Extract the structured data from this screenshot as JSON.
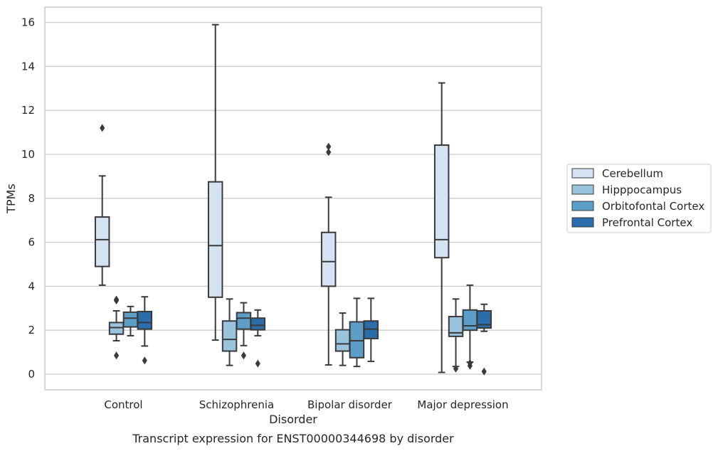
{
  "chart_data": {
    "type": "box",
    "xlabel": "Disorder",
    "ylabel": "TPMs",
    "caption": "Transcript expression for ENST00000344698 by disorder",
    "ylim": [
      -0.7,
      16.7
    ],
    "yticks": [
      0,
      2,
      4,
      6,
      8,
      10,
      12,
      14,
      16
    ],
    "categories": [
      "Control",
      "Schizophrenia",
      "Bipolar disorder",
      "Major depression"
    ],
    "grid": "horizontal",
    "legend_position": "right",
    "series": [
      {
        "name": "Cerebellum",
        "color": "#d4e3f1",
        "boxes": [
          {
            "whisker_low": 4.05,
            "q1": 4.9,
            "median": 6.12,
            "q3": 7.15,
            "whisker_high": 9.02,
            "outliers": [
              11.2
            ]
          },
          {
            "whisker_low": 1.55,
            "q1": 3.5,
            "median": 5.85,
            "q3": 8.75,
            "whisker_high": 15.9,
            "outliers": []
          },
          {
            "whisker_low": 0.42,
            "q1": 4.0,
            "median": 5.12,
            "q3": 6.45,
            "whisker_high": 8.05,
            "outliers": [
              10.1,
              10.35
            ]
          },
          {
            "whisker_low": 0.08,
            "q1": 5.3,
            "median": 6.12,
            "q3": 10.42,
            "whisker_high": 13.25,
            "outliers": []
          }
        ]
      },
      {
        "name": "Hipppocampus",
        "color": "#9ac4de",
        "boxes": [
          {
            "whisker_low": 1.52,
            "q1": 1.82,
            "median": 2.12,
            "q3": 2.35,
            "whisker_high": 2.88,
            "outliers": [
              0.85,
              3.35,
              3.4
            ]
          },
          {
            "whisker_low": 0.4,
            "q1": 1.05,
            "median": 1.58,
            "q3": 2.42,
            "whisker_high": 3.42,
            "outliers": []
          },
          {
            "whisker_low": 0.4,
            "q1": 1.05,
            "median": 1.38,
            "q3": 2.02,
            "whisker_high": 2.78,
            "outliers": []
          },
          {
            "whisker_low": 0.35,
            "q1": 1.72,
            "median": 1.88,
            "q3": 2.62,
            "whisker_high": 3.42,
            "outliers": [
              0.25
            ]
          }
        ]
      },
      {
        "name": "Orbitofontal Cortex",
        "color": "#5d9ec9",
        "boxes": [
          {
            "whisker_low": 1.75,
            "q1": 2.15,
            "median": 2.55,
            "q3": 2.82,
            "whisker_high": 3.08,
            "outliers": []
          },
          {
            "whisker_low": 1.3,
            "q1": 2.05,
            "median": 2.55,
            "q3": 2.8,
            "whisker_high": 3.25,
            "outliers": [
              0.85
            ]
          },
          {
            "whisker_low": 0.35,
            "q1": 0.75,
            "median": 1.52,
            "q3": 2.38,
            "whisker_high": 3.45,
            "outliers": []
          },
          {
            "whisker_low": 0.55,
            "q1": 2.0,
            "median": 2.2,
            "q3": 2.92,
            "whisker_high": 4.05,
            "outliers": [
              0.38,
              0.5
            ]
          }
        ]
      },
      {
        "name": "Prefrontal Cortex",
        "color": "#2b6dab",
        "boxes": [
          {
            "whisker_low": 1.28,
            "q1": 2.05,
            "median": 2.35,
            "q3": 2.85,
            "whisker_high": 3.52,
            "outliers": [
              0.62
            ]
          },
          {
            "whisker_low": 1.75,
            "q1": 2.02,
            "median": 2.22,
            "q3": 2.55,
            "whisker_high": 2.92,
            "outliers": [
              0.48
            ]
          },
          {
            "whisker_low": 0.58,
            "q1": 1.62,
            "median": 2.05,
            "q3": 2.42,
            "whisker_high": 3.45,
            "outliers": []
          },
          {
            "whisker_low": 1.95,
            "q1": 2.1,
            "median": 2.25,
            "q3": 2.88,
            "whisker_high": 3.18,
            "outliers": [
              0.12
            ]
          }
        ]
      }
    ]
  }
}
